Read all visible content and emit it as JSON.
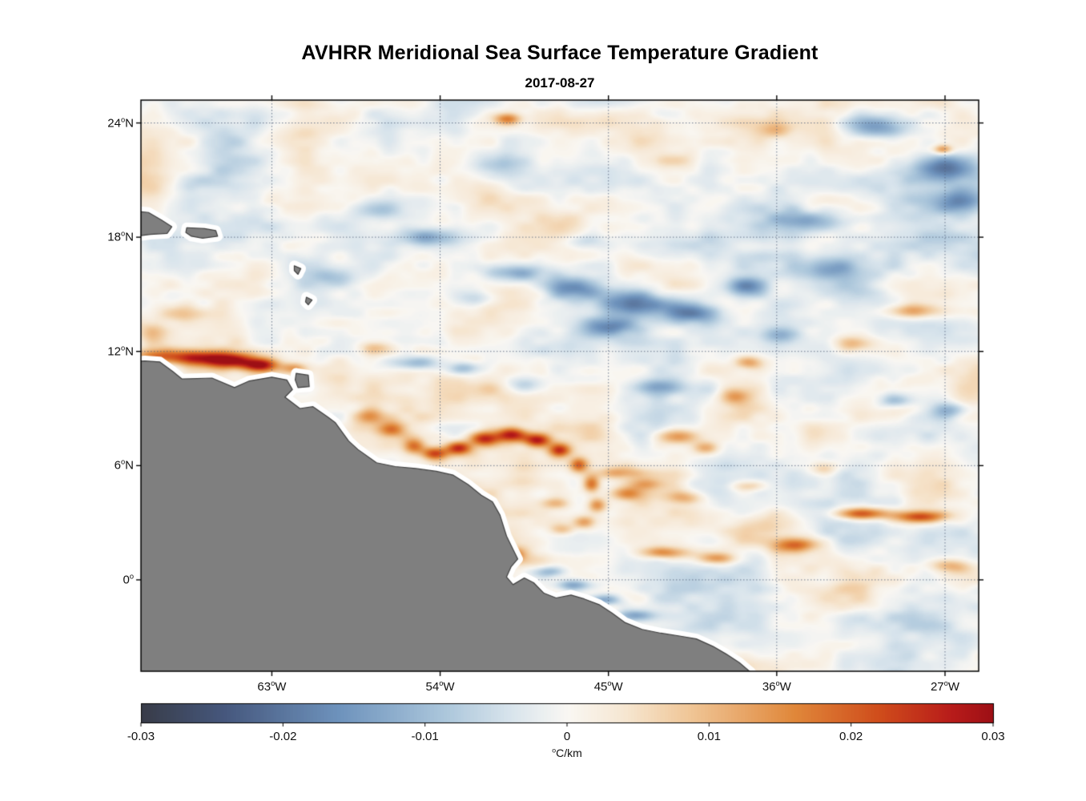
{
  "figure": {
    "title": "AVHRR Meridional Sea Surface Temperature Gradient",
    "subtitle": "2017-08-27"
  },
  "chart_data": {
    "type": "heatmap",
    "title": "AVHRR Meridional Sea Surface Temperature Gradient",
    "subtitle": "2017-08-27",
    "xlabel": "",
    "ylabel": "",
    "lon_range": [
      -70.0,
      -25.2
    ],
    "lat_range": [
      -4.8,
      25.2
    ],
    "grid": "dotted",
    "grid_color": "rgba(85,100,125,0.85)",
    "land_color": "#7f7f7f",
    "coast_outline": "#404040",
    "coast_buffer_color": "#ffffff",
    "x_ticks": [
      {
        "lon": -63,
        "label": "63°W"
      },
      {
        "lon": -54,
        "label": "54°W"
      },
      {
        "lon": -45,
        "label": "45°W"
      },
      {
        "lon": -36,
        "label": "36°W"
      },
      {
        "lon": -27,
        "label": "27°W"
      }
    ],
    "y_ticks": [
      {
        "lat": 24,
        "label": "24°N"
      },
      {
        "lat": 18,
        "label": "18°N"
      },
      {
        "lat": 12,
        "label": "12°N"
      },
      {
        "lat": 6,
        "label": "6°N"
      },
      {
        "lat": 0,
        "label": "0°"
      }
    ],
    "colorbar": {
      "min": -0.03,
      "max": 0.03,
      "ticks": [
        -0.03,
        -0.02,
        -0.01,
        0,
        0.01,
        0.02,
        0.03
      ],
      "tick_labels": [
        "-0.03",
        "-0.02",
        "-0.01",
        "0",
        "0.01",
        "0.02",
        "0.03"
      ],
      "label": "°C/km",
      "colormap": [
        {
          "v": -0.03,
          "c": "#383c48"
        },
        {
          "v": -0.024,
          "c": "#46587e"
        },
        {
          "v": -0.016,
          "c": "#6e93bd"
        },
        {
          "v": -0.009,
          "c": "#a8c4da"
        },
        {
          "v": -0.004,
          "c": "#d8e4ec"
        },
        {
          "v": 0.0,
          "c": "#f9f7f3"
        },
        {
          "v": 0.004,
          "c": "#f6e7d2"
        },
        {
          "v": 0.009,
          "c": "#efc392"
        },
        {
          "v": 0.016,
          "c": "#e0873a"
        },
        {
          "v": 0.022,
          "c": "#cf4c1b"
        },
        {
          "v": 0.027,
          "c": "#b81c1a"
        },
        {
          "v": 0.03,
          "c": "#9d0f15"
        }
      ]
    },
    "noise": {
      "seed": 7,
      "aspect": 1.8,
      "octaves": [
        {
          "scale": 2.6,
          "amp": 0.0045
        },
        {
          "scale": 1.1,
          "amp": 0.0032
        },
        {
          "scale": 0.5,
          "amp": 0.0018
        }
      ]
    },
    "coastline": [
      [
        -73.0,
        11.5
      ],
      [
        -70.5,
        11.45
      ],
      [
        -69.8,
        11.5
      ],
      [
        -69.0,
        11.45
      ],
      [
        -68.3,
        10.95
      ],
      [
        -67.8,
        10.55
      ],
      [
        -66.2,
        10.6
      ],
      [
        -65.0,
        10.1
      ],
      [
        -64.2,
        10.45
      ],
      [
        -63.0,
        10.65
      ],
      [
        -62.2,
        10.5
      ],
      [
        -61.9,
        10.0
      ],
      [
        -62.3,
        9.6
      ],
      [
        -61.5,
        9.0
      ],
      [
        -60.8,
        9.1
      ],
      [
        -60.0,
        8.55
      ],
      [
        -59.6,
        8.25
      ],
      [
        -58.9,
        7.3
      ],
      [
        -58.4,
        6.85
      ],
      [
        -57.4,
        6.15
      ],
      [
        -56.4,
        5.95
      ],
      [
        -55.3,
        5.85
      ],
      [
        -54.2,
        5.7
      ],
      [
        -53.3,
        5.5
      ],
      [
        -52.5,
        5.0
      ],
      [
        -51.8,
        4.45
      ],
      [
        -51.2,
        4.1
      ],
      [
        -50.8,
        3.4
      ],
      [
        -50.45,
        2.3
      ],
      [
        -50.1,
        1.6
      ],
      [
        -49.85,
        1.1
      ],
      [
        -50.2,
        0.7
      ],
      [
        -50.45,
        0.15
      ],
      [
        -50.1,
        -0.25
      ],
      [
        -49.5,
        0.1
      ],
      [
        -49.0,
        -0.15
      ],
      [
        -48.45,
        -0.7
      ],
      [
        -47.8,
        -0.95
      ],
      [
        -47.0,
        -0.8
      ],
      [
        -46.3,
        -1.0
      ],
      [
        -45.5,
        -1.3
      ],
      [
        -44.8,
        -1.75
      ],
      [
        -44.1,
        -2.25
      ],
      [
        -43.2,
        -2.6
      ],
      [
        -42.2,
        -2.8
      ],
      [
        -41.2,
        -2.95
      ],
      [
        -40.3,
        -3.1
      ],
      [
        -39.4,
        -3.5
      ],
      [
        -38.7,
        -3.9
      ],
      [
        -38.0,
        -4.35
      ],
      [
        -37.4,
        -4.85
      ],
      [
        -37.0,
        -5.4
      ],
      [
        -36.8,
        -7.0
      ],
      [
        -73.0,
        -7.0
      ]
    ],
    "islands": [
      [
        [
          -70.6,
          19.4
        ],
        [
          -69.6,
          19.3
        ],
        [
          -68.9,
          18.9
        ],
        [
          -68.35,
          18.55
        ],
        [
          -68.6,
          18.2
        ],
        [
          -69.5,
          18.15
        ],
        [
          -70.6,
          18.0
        ]
      ],
      [
        [
          -67.55,
          18.5
        ],
        [
          -66.6,
          18.45
        ],
        [
          -66.0,
          18.35
        ],
        [
          -65.9,
          18.05
        ],
        [
          -66.7,
          17.95
        ],
        [
          -67.3,
          18.05
        ],
        [
          -67.6,
          18.25
        ]
      ],
      [
        [
          -61.8,
          16.5
        ],
        [
          -61.45,
          16.35
        ],
        [
          -61.6,
          16.05
        ],
        [
          -61.8,
          16.25
        ]
      ],
      [
        [
          -61.15,
          14.85
        ],
        [
          -60.85,
          14.7
        ],
        [
          -61.05,
          14.45
        ],
        [
          -61.2,
          14.6
        ]
      ],
      [
        [
          -61.7,
          10.85
        ],
        [
          -61.05,
          10.75
        ],
        [
          -61.0,
          10.15
        ],
        [
          -61.6,
          10.1
        ],
        [
          -61.75,
          10.5
        ]
      ]
    ],
    "features": [
      {
        "lon": -69.3,
        "lat": 11.75,
        "amp": 0.016,
        "sx": 1.3,
        "sy": 0.4
      },
      {
        "lon": -67.2,
        "lat": 11.65,
        "amp": 0.02,
        "sx": 1.4,
        "sy": 0.38
      },
      {
        "lon": -65.3,
        "lat": 11.5,
        "amp": 0.028,
        "sx": 1.5,
        "sy": 0.42
      },
      {
        "lon": -63.6,
        "lat": 11.25,
        "amp": 0.026,
        "sx": 0.9,
        "sy": 0.35
      },
      {
        "lon": -61.8,
        "lat": 11.1,
        "amp": 0.012,
        "sx": 0.7,
        "sy": 0.3
      },
      {
        "lon": -67.8,
        "lat": 14.0,
        "amp": 0.01,
        "sx": 1.4,
        "sy": 0.5
      },
      {
        "lon": -69.4,
        "lat": 13.0,
        "amp": 0.009,
        "sx": 0.8,
        "sy": 0.5
      },
      {
        "lon": -57.8,
        "lat": 8.6,
        "amp": 0.012,
        "sx": 0.8,
        "sy": 0.45
      },
      {
        "lon": -56.6,
        "lat": 7.9,
        "amp": 0.016,
        "sx": 0.7,
        "sy": 0.4
      },
      {
        "lon": -55.4,
        "lat": 7.0,
        "amp": 0.018,
        "sx": 0.6,
        "sy": 0.4
      },
      {
        "lon": -54.3,
        "lat": 6.6,
        "amp": 0.022,
        "sx": 0.7,
        "sy": 0.35
      },
      {
        "lon": -53.0,
        "lat": 6.9,
        "amp": 0.024,
        "sx": 0.7,
        "sy": 0.35
      },
      {
        "lon": -51.6,
        "lat": 7.4,
        "amp": 0.026,
        "sx": 0.8,
        "sy": 0.38
      },
      {
        "lon": -50.2,
        "lat": 7.6,
        "amp": 0.026,
        "sx": 0.8,
        "sy": 0.38
      },
      {
        "lon": -48.8,
        "lat": 7.3,
        "amp": 0.024,
        "sx": 0.7,
        "sy": 0.35
      },
      {
        "lon": -47.6,
        "lat": 6.8,
        "amp": 0.022,
        "sx": 0.6,
        "sy": 0.35
      },
      {
        "lon": -46.6,
        "lat": 6.0,
        "amp": 0.02,
        "sx": 0.5,
        "sy": 0.4
      },
      {
        "lon": -45.9,
        "lat": 5.0,
        "amp": 0.018,
        "sx": 0.45,
        "sy": 0.45
      },
      {
        "lon": -45.6,
        "lat": 3.9,
        "amp": 0.016,
        "sx": 0.5,
        "sy": 0.4
      },
      {
        "lon": -46.3,
        "lat": 3.0,
        "amp": 0.013,
        "sx": 0.6,
        "sy": 0.35
      },
      {
        "lon": -47.5,
        "lat": 2.6,
        "amp": 0.011,
        "sx": 0.7,
        "sy": 0.3
      },
      {
        "lon": -44.5,
        "lat": 5.6,
        "amp": 0.01,
        "sx": 1.1,
        "sy": 0.3
      },
      {
        "lon": -42.9,
        "lat": 5.0,
        "amp": 0.009,
        "sx": 1.0,
        "sy": 0.3
      },
      {
        "lon": -47.9,
        "lat": 4.0,
        "amp": 0.008,
        "sx": 0.9,
        "sy": 0.3
      },
      {
        "lon": -41.3,
        "lat": 7.5,
        "amp": 0.016,
        "sx": 1.1,
        "sy": 0.4
      },
      {
        "lon": -39.8,
        "lat": 6.9,
        "amp": 0.013,
        "sx": 0.7,
        "sy": 0.35
      },
      {
        "lon": -38.3,
        "lat": 9.6,
        "amp": 0.011,
        "sx": 0.8,
        "sy": 0.4
      },
      {
        "lon": -37.4,
        "lat": 11.4,
        "amp": 0.012,
        "sx": 0.8,
        "sy": 0.35
      },
      {
        "lon": -31.5,
        "lat": 3.45,
        "amp": 0.022,
        "sx": 1.4,
        "sy": 0.32
      },
      {
        "lon": -28.3,
        "lat": 3.3,
        "amp": 0.022,
        "sx": 1.4,
        "sy": 0.32
      },
      {
        "lon": -35.0,
        "lat": 1.8,
        "amp": 0.019,
        "sx": 1.2,
        "sy": 0.4
      },
      {
        "lon": -42.0,
        "lat": 1.4,
        "amp": 0.015,
        "sx": 1.4,
        "sy": 0.32
      },
      {
        "lon": -39.2,
        "lat": 1.1,
        "amp": 0.013,
        "sx": 1.0,
        "sy": 0.3
      },
      {
        "lon": -26.8,
        "lat": 0.7,
        "amp": 0.013,
        "sx": 1.2,
        "sy": 0.4
      },
      {
        "lon": -44.0,
        "lat": 4.5,
        "amp": 0.011,
        "sx": 0.9,
        "sy": 0.35
      },
      {
        "lon": -40.8,
        "lat": 4.3,
        "amp": 0.01,
        "sx": 1.0,
        "sy": 0.35
      },
      {
        "lon": -37.6,
        "lat": 4.9,
        "amp": 0.009,
        "sx": 0.9,
        "sy": 0.3
      },
      {
        "lon": -33.5,
        "lat": 5.8,
        "amp": 0.008,
        "sx": 0.8,
        "sy": 0.35
      },
      {
        "lon": -28.8,
        "lat": 14.1,
        "amp": 0.013,
        "sx": 1.4,
        "sy": 0.38
      },
      {
        "lon": -31.9,
        "lat": 12.4,
        "amp": 0.01,
        "sx": 1.0,
        "sy": 0.4
      },
      {
        "lon": -50.4,
        "lat": 24.2,
        "amp": 0.016,
        "sx": 0.7,
        "sy": 0.32
      },
      {
        "lon": -27.1,
        "lat": 22.6,
        "amp": 0.016,
        "sx": 0.5,
        "sy": 0.25
      },
      {
        "lon": -41.4,
        "lat": 22.0,
        "amp": 0.008,
        "sx": 1.0,
        "sy": 0.4
      },
      {
        "lon": -36.0,
        "lat": 23.6,
        "amp": 0.008,
        "sx": 1.0,
        "sy": 0.4
      },
      {
        "lon": -50.0,
        "lat": 1.3,
        "amp": 0.013,
        "sx": 0.5,
        "sy": 0.35
      },
      {
        "lon": -57.5,
        "lat": 12.2,
        "amp": 0.009,
        "sx": 0.9,
        "sy": 0.4
      },
      {
        "lon": -36.5,
        "lat": 3.0,
        "amp": 0.007,
        "sx": 1.5,
        "sy": 0.6
      },
      {
        "lon": -54.6,
        "lat": 18.0,
        "amp": -0.012,
        "sx": 1.6,
        "sy": 0.45
      },
      {
        "lon": -50.0,
        "lat": 16.1,
        "amp": -0.014,
        "sx": 1.8,
        "sy": 0.5
      },
      {
        "lon": -46.8,
        "lat": 15.3,
        "amp": -0.016,
        "sx": 1.6,
        "sy": 0.6
      },
      {
        "lon": -43.6,
        "lat": 14.5,
        "amp": -0.02,
        "sx": 1.9,
        "sy": 0.65
      },
      {
        "lon": -40.6,
        "lat": 14.0,
        "amp": -0.018,
        "sx": 1.6,
        "sy": 0.6
      },
      {
        "lon": -44.8,
        "lat": 13.3,
        "amp": -0.013,
        "sx": 1.4,
        "sy": 0.5
      },
      {
        "lon": -37.6,
        "lat": 15.4,
        "amp": -0.016,
        "sx": 1.2,
        "sy": 0.55
      },
      {
        "lon": -34.2,
        "lat": 18.8,
        "amp": -0.015,
        "sx": 2.2,
        "sy": 0.6
      },
      {
        "lon": -30.6,
        "lat": 23.8,
        "amp": -0.015,
        "sx": 1.6,
        "sy": 0.6
      },
      {
        "lon": -27.0,
        "lat": 21.6,
        "amp": -0.016,
        "sx": 1.6,
        "sy": 0.7
      },
      {
        "lon": -26.2,
        "lat": 19.9,
        "amp": -0.012,
        "sx": 1.2,
        "sy": 0.6
      },
      {
        "lon": -55.3,
        "lat": 11.35,
        "amp": -0.012,
        "sx": 1.3,
        "sy": 0.4
      },
      {
        "lon": -52.6,
        "lat": 11.1,
        "amp": -0.011,
        "sx": 0.9,
        "sy": 0.35
      },
      {
        "lon": -49.5,
        "lat": 10.3,
        "amp": -0.008,
        "sx": 1.0,
        "sy": 0.4
      },
      {
        "lon": -29.7,
        "lat": 9.4,
        "amp": -0.012,
        "sx": 0.9,
        "sy": 0.4
      },
      {
        "lon": -26.8,
        "lat": 8.9,
        "amp": -0.011,
        "sx": 0.9,
        "sy": 0.4
      },
      {
        "lon": -42.3,
        "lat": 10.1,
        "amp": -0.013,
        "sx": 1.3,
        "sy": 0.45
      },
      {
        "lon": -48.3,
        "lat": 0.4,
        "amp": -0.013,
        "sx": 0.9,
        "sy": 0.3
      },
      {
        "lon": -46.9,
        "lat": -0.3,
        "amp": -0.014,
        "sx": 1.0,
        "sy": 0.3
      },
      {
        "lon": -45.3,
        "lat": -1.1,
        "amp": -0.013,
        "sx": 1.1,
        "sy": 0.3
      },
      {
        "lon": -43.6,
        "lat": -1.9,
        "amp": -0.012,
        "sx": 1.0,
        "sy": 0.3
      },
      {
        "lon": -51.5,
        "lat": 2.7,
        "amp": -0.012,
        "sx": 0.8,
        "sy": 0.4
      },
      {
        "lon": -51.0,
        "lat": 21.6,
        "amp": -0.009,
        "sx": 1.5,
        "sy": 0.7
      },
      {
        "lon": -57.3,
        "lat": 19.4,
        "amp": -0.008,
        "sx": 1.2,
        "sy": 0.5
      },
      {
        "lon": -67.3,
        "lat": 20.9,
        "amp": -0.007,
        "sx": 1.2,
        "sy": 0.5
      },
      {
        "lon": -52.0,
        "lat": 14.8,
        "amp": -0.009,
        "sx": 1.2,
        "sy": 0.5
      },
      {
        "lon": -59.5,
        "lat": 15.9,
        "amp": -0.008,
        "sx": 1.2,
        "sy": 0.5
      },
      {
        "lon": -35.8,
        "lat": 12.8,
        "amp": -0.009,
        "sx": 1.0,
        "sy": 0.45
      },
      {
        "lon": -33.2,
        "lat": 16.4,
        "amp": -0.01,
        "sx": 1.4,
        "sy": 0.5
      },
      {
        "lon": -46.3,
        "lat": 17.8,
        "amp": -0.008,
        "sx": 1.2,
        "sy": 0.45
      },
      {
        "lon": -32.0,
        "lat": 19.0,
        "amp": -0.0025,
        "sx": 9.0,
        "sy": 5.0
      },
      {
        "lon": -48.0,
        "lat": 4.0,
        "amp": 0.002,
        "sx": 8.0,
        "sy": 4.0
      },
      {
        "lon": -63.0,
        "lat": 17.0,
        "amp": -0.0015,
        "sx": 5.0,
        "sy": 4.0
      }
    ]
  }
}
